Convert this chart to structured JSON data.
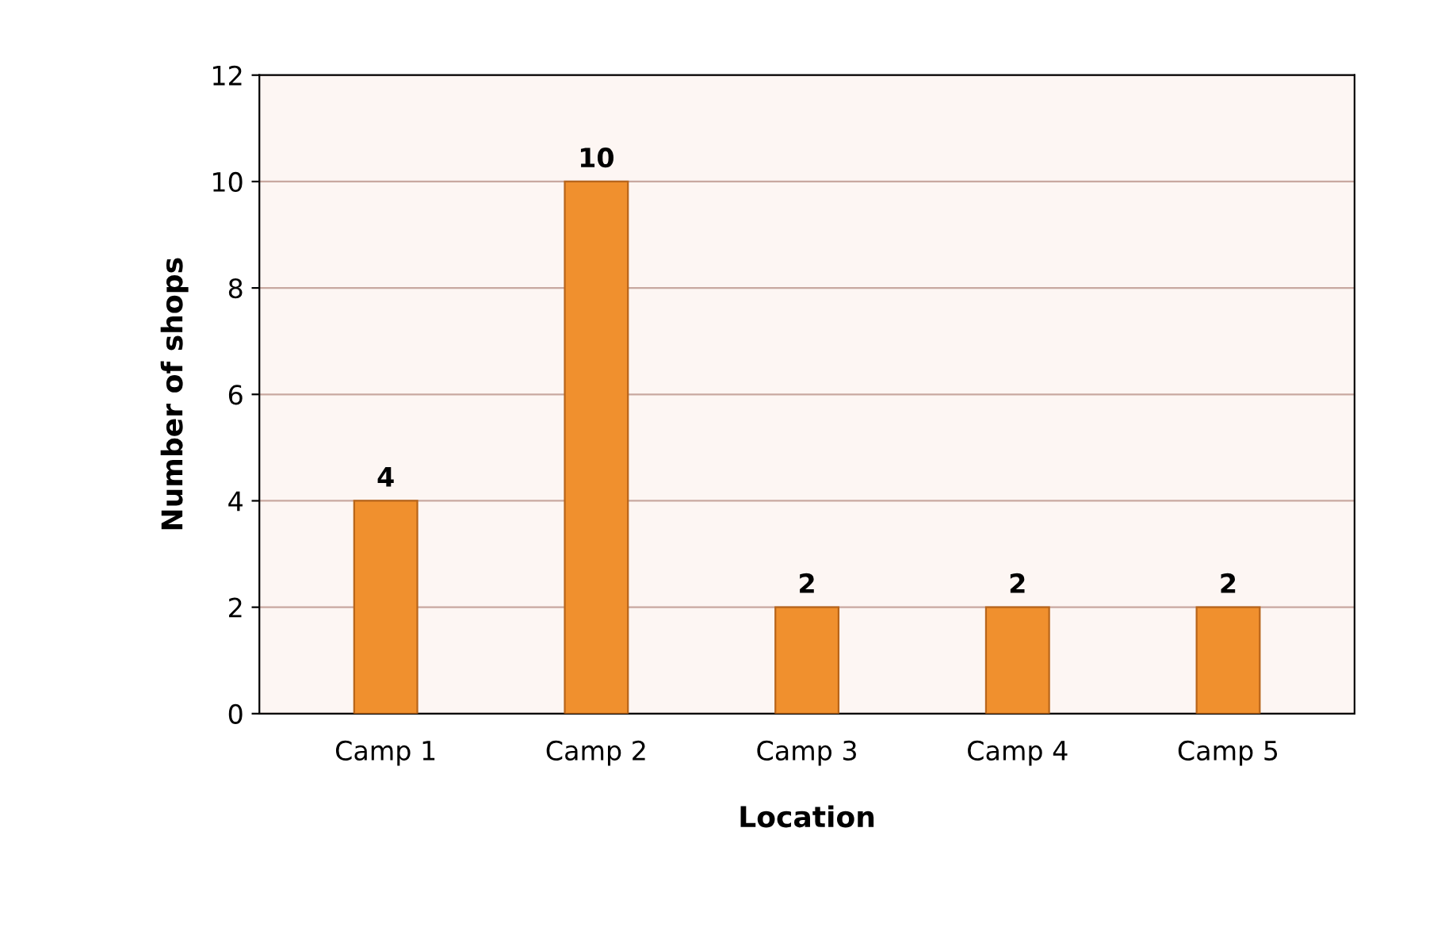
{
  "chart_data": {
    "type": "bar",
    "xlabel": "Location",
    "ylabel": "Number of shops",
    "categories": [
      "Camp 1",
      "Camp 2",
      "Camp 3",
      "Camp 4",
      "Camp 5"
    ],
    "values": [
      4,
      10,
      2,
      2,
      2
    ],
    "color": "#f0902e",
    "ylim": [
      0,
      12
    ],
    "yticks": [
      0,
      2,
      4,
      6,
      8,
      10,
      12
    ],
    "grid": "y",
    "data_labels": true
  }
}
